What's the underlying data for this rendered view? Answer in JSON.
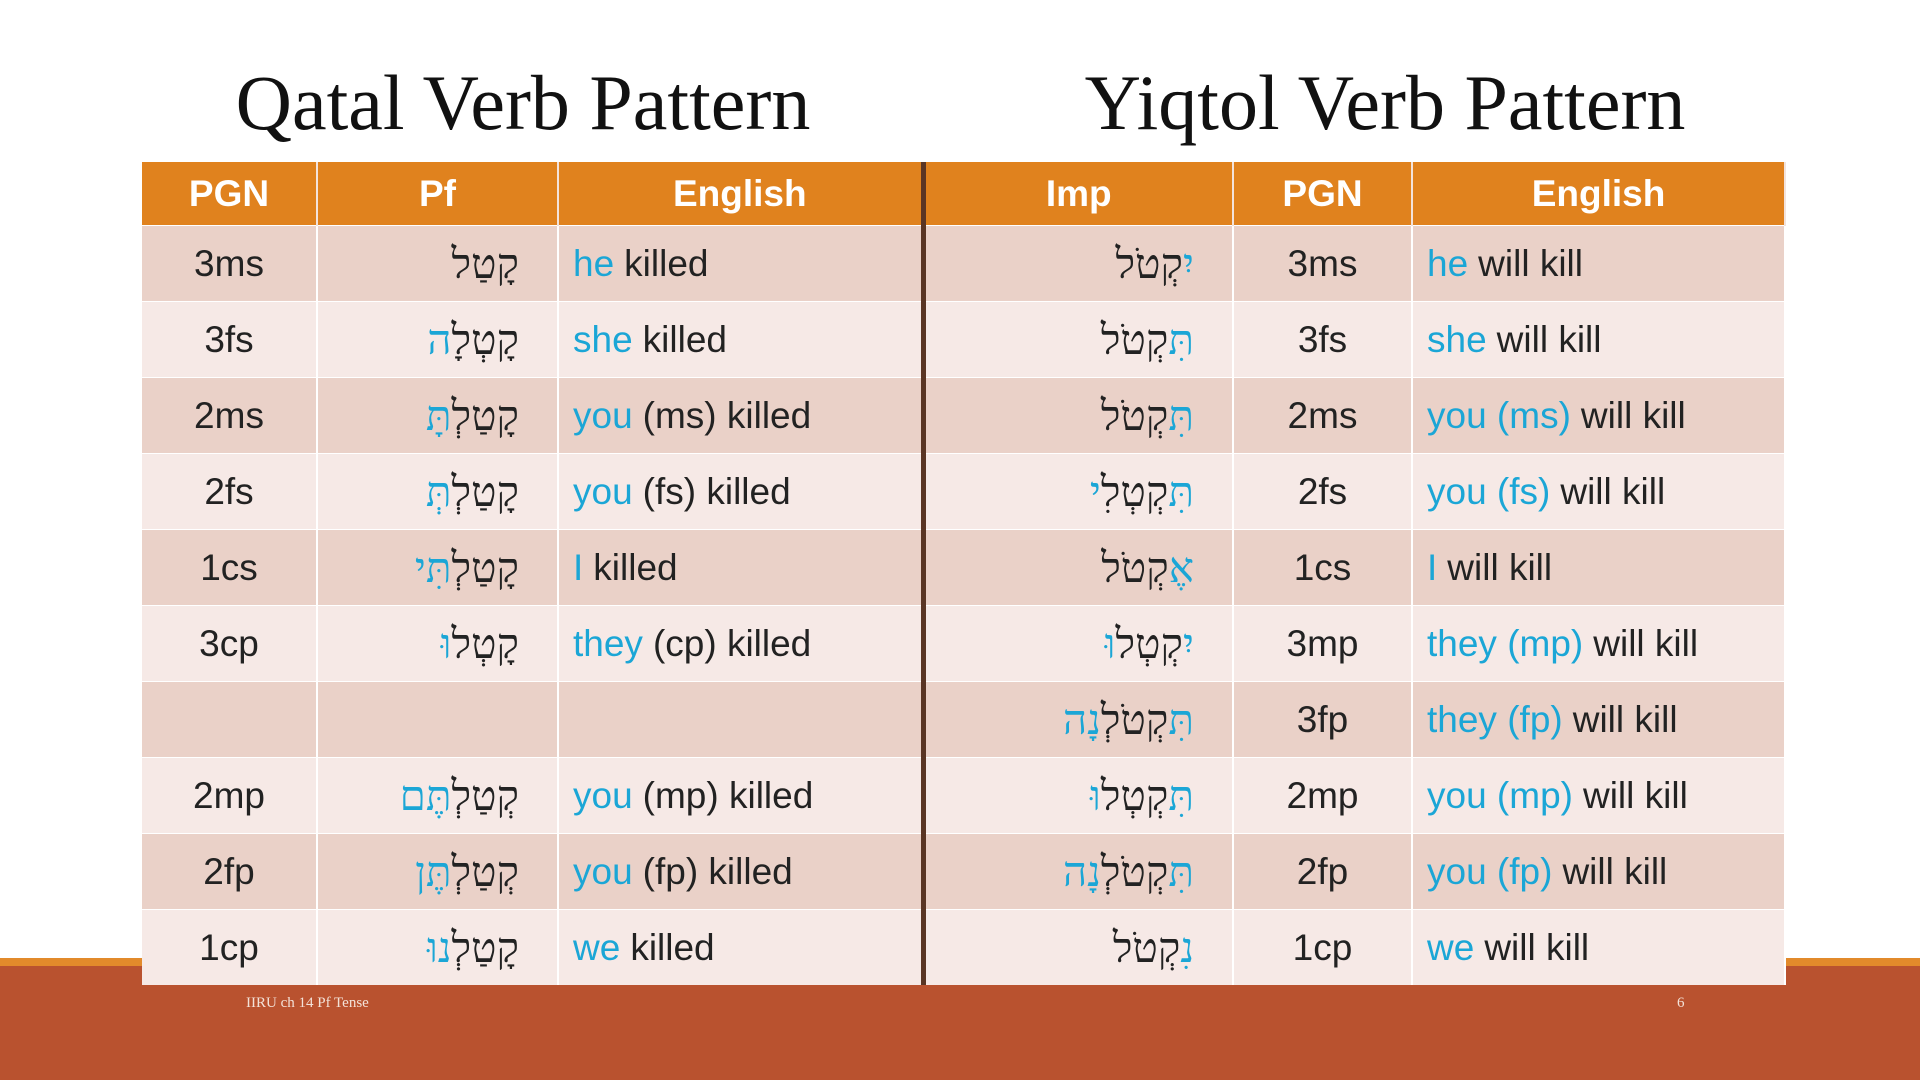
{
  "titles": {
    "left": "Qatal Verb Pattern",
    "right": "Yiqtol Verb Pattern"
  },
  "table": {
    "headers": [
      "PGN",
      "Pf",
      "English",
      "Imp",
      "PGN",
      "English"
    ],
    "rows": [
      {
        "pgn": "3ms",
        "pf": [
          {
            "t": "קָטַל",
            "b": false
          }
        ],
        "en": [
          {
            "t": "he",
            "b": true
          },
          {
            "t": "killed",
            "b": false
          }
        ],
        "imp": [
          {
            "t": "יִ",
            "b": true
          },
          {
            "t": "קְטֹל",
            "b": false
          }
        ],
        "pgn2": "3ms",
        "en2": [
          {
            "t": "he",
            "b": true
          },
          {
            "t": "will kill",
            "b": false
          }
        ]
      },
      {
        "pgn": "3fs",
        "pf": [
          {
            "t": "קָטְלָ",
            "b": false
          },
          {
            "t": "ה",
            "b": true
          }
        ],
        "en": [
          {
            "t": "she",
            "b": true
          },
          {
            "t": "killed",
            "b": false
          }
        ],
        "imp": [
          {
            "t": "תִּ",
            "b": true
          },
          {
            "t": "קְטֹל",
            "b": false
          }
        ],
        "pgn2": "3fs",
        "en2": [
          {
            "t": "she",
            "b": true
          },
          {
            "t": "will kill",
            "b": false
          }
        ]
      },
      {
        "pgn": "2ms",
        "pf": [
          {
            "t": "קָטַלְ",
            "b": false
          },
          {
            "t": "תָּ",
            "b": true
          }
        ],
        "en": [
          {
            "t": "you",
            "b": true
          },
          {
            "t": "(ms) killed",
            "b": false
          }
        ],
        "imp": [
          {
            "t": "תִּ",
            "b": true
          },
          {
            "t": "קְטֹל",
            "b": false
          }
        ],
        "pgn2": "2ms",
        "en2": [
          {
            "t": "you (ms)",
            "b": true
          },
          {
            "t": "will kill",
            "b": false
          }
        ]
      },
      {
        "pgn": "2fs",
        "pf": [
          {
            "t": "קָטַלְ",
            "b": false
          },
          {
            "t": "תְּ",
            "b": true
          }
        ],
        "en": [
          {
            "t": "you",
            "b": true
          },
          {
            "t": "(fs) killed",
            "b": false
          }
        ],
        "imp": [
          {
            "t": "תִּ",
            "b": true
          },
          {
            "t": "קְטְלִ",
            "b": false
          },
          {
            "t": "י",
            "b": true
          }
        ],
        "pgn2": "2fs",
        "en2": [
          {
            "t": "you (fs)",
            "b": true
          },
          {
            "t": "will kill",
            "b": false
          }
        ]
      },
      {
        "pgn": "1cs",
        "pf": [
          {
            "t": "קָטַלְ",
            "b": false
          },
          {
            "t": "תִּי",
            "b": true
          }
        ],
        "en": [
          {
            "t": "I",
            "b": true
          },
          {
            "t": "killed",
            "b": false
          }
        ],
        "imp": [
          {
            "t": "אֶ",
            "b": true
          },
          {
            "t": "קְטֹל",
            "b": false
          }
        ],
        "pgn2": "1cs",
        "en2": [
          {
            "t": "I",
            "b": true
          },
          {
            "t": "will kill",
            "b": false
          }
        ]
      },
      {
        "pgn": "3cp",
        "pf": [
          {
            "t": "קָטְל",
            "b": false
          },
          {
            "t": "וּ",
            "b": true
          }
        ],
        "en": [
          {
            "t": "they",
            "b": true
          },
          {
            "t": "(cp) killed",
            "b": false
          }
        ],
        "imp": [
          {
            "t": "יִ",
            "b": true
          },
          {
            "t": "קְטְל",
            "b": false
          },
          {
            "t": "וּ",
            "b": true
          }
        ],
        "pgn2": "3mp",
        "en2": [
          {
            "t": "they (mp)",
            "b": true
          },
          {
            "t": "will kill",
            "b": false
          }
        ]
      },
      {
        "pgn": null,
        "pf": null,
        "en": null,
        "imp": [
          {
            "t": "תִּ",
            "b": true
          },
          {
            "t": "קְטֹלְ",
            "b": false
          },
          {
            "t": "נָה",
            "b": true
          }
        ],
        "pgn2": "3fp",
        "en2": [
          {
            "t": "they (fp)",
            "b": true
          },
          {
            "t": "will kill",
            "b": false
          }
        ]
      },
      {
        "pgn": "2mp",
        "pf": [
          {
            "t": "קְטַלְ",
            "b": false
          },
          {
            "t": "תֶּם",
            "b": true
          }
        ],
        "en": [
          {
            "t": "you",
            "b": true
          },
          {
            "t": "(mp) killed",
            "b": false
          }
        ],
        "imp": [
          {
            "t": "תִּ",
            "b": true
          },
          {
            "t": "קְטְל",
            "b": false
          },
          {
            "t": "וּ",
            "b": true
          }
        ],
        "pgn2": "2mp",
        "en2": [
          {
            "t": "you (mp)",
            "b": true
          },
          {
            "t": "will kill",
            "b": false
          }
        ]
      },
      {
        "pgn": "2fp",
        "pf": [
          {
            "t": "קְטַלְ",
            "b": false
          },
          {
            "t": "תֶּן",
            "b": true
          }
        ],
        "en": [
          {
            "t": "you",
            "b": true
          },
          {
            "t": "(fp) killed",
            "b": false
          }
        ],
        "imp": [
          {
            "t": "תִּ",
            "b": true
          },
          {
            "t": "קְטֹלְ",
            "b": false
          },
          {
            "t": "נָה",
            "b": true
          }
        ],
        "pgn2": "2fp",
        "en2": [
          {
            "t": "you (fp)",
            "b": true
          },
          {
            "t": "will kill",
            "b": false
          }
        ]
      },
      {
        "pgn": "1cp",
        "pf": [
          {
            "t": "קָטַלְ",
            "b": false
          },
          {
            "t": "נוּ",
            "b": true
          }
        ],
        "en": [
          {
            "t": "we",
            "b": true
          },
          {
            "t": "killed",
            "b": false
          }
        ],
        "imp": [
          {
            "t": "נִ",
            "b": true
          },
          {
            "t": "קְטֹל",
            "b": false
          }
        ],
        "pgn2": "1cp",
        "en2": [
          {
            "t": "we",
            "b": true
          },
          {
            "t": "will kill",
            "b": false
          }
        ]
      }
    ]
  },
  "footer": {
    "left": "IIRU ch 14 Pf Tense",
    "right": "6"
  }
}
